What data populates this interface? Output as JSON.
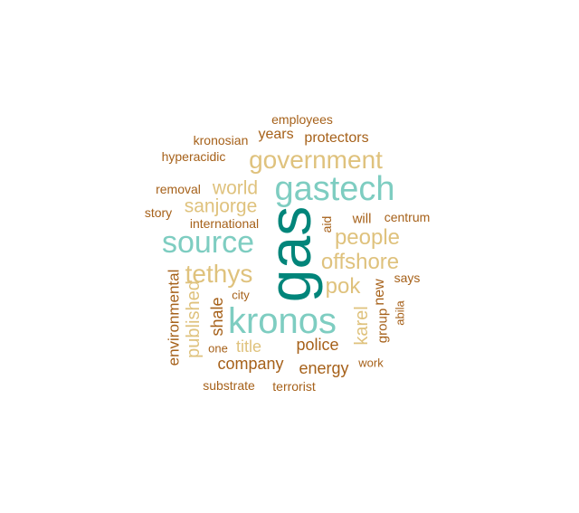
{
  "palette": {
    "dark_teal": "#01857a",
    "light_teal": "#7ecdc1",
    "light_tan": "#dfc27d",
    "brown": "#a6611a"
  },
  "words": [
    {
      "text": "gas",
      "color": "dark_teal",
      "vertical": true
    },
    {
      "text": "kronos",
      "color": "light_teal",
      "vertical": false
    },
    {
      "text": "gastech",
      "color": "light_teal",
      "vertical": false
    },
    {
      "text": "source",
      "color": "light_teal",
      "vertical": false
    },
    {
      "text": "government",
      "color": "light_tan",
      "vertical": false
    },
    {
      "text": "tethys",
      "color": "light_tan",
      "vertical": false
    },
    {
      "text": "people",
      "color": "light_tan",
      "vertical": false
    },
    {
      "text": "offshore",
      "color": "light_tan",
      "vertical": false
    },
    {
      "text": "pok",
      "color": "light_tan",
      "vertical": false
    },
    {
      "text": "world",
      "color": "light_tan",
      "vertical": false
    },
    {
      "text": "sanjorge",
      "color": "light_tan",
      "vertical": false
    },
    {
      "text": "published",
      "color": "light_tan",
      "vertical": true
    },
    {
      "text": "karel",
      "color": "light_tan",
      "vertical": true
    },
    {
      "text": "title",
      "color": "light_tan",
      "vertical": false
    },
    {
      "text": "shale",
      "color": "brown",
      "vertical": true
    },
    {
      "text": "environmental",
      "color": "brown",
      "vertical": true
    },
    {
      "text": "police",
      "color": "brown",
      "vertical": false
    },
    {
      "text": "company",
      "color": "brown",
      "vertical": false
    },
    {
      "text": "energy",
      "color": "brown",
      "vertical": false
    },
    {
      "text": "new",
      "color": "brown",
      "vertical": true
    },
    {
      "text": "group",
      "color": "brown",
      "vertical": true
    },
    {
      "text": "years",
      "color": "brown",
      "vertical": false
    },
    {
      "text": "protectors",
      "color": "brown",
      "vertical": false
    },
    {
      "text": "will",
      "color": "brown",
      "vertical": false
    },
    {
      "text": "aid",
      "color": "brown",
      "vertical": true
    },
    {
      "text": "employees",
      "color": "brown",
      "vertical": false
    },
    {
      "text": "kronosian",
      "color": "brown",
      "vertical": false
    },
    {
      "text": "hyperacidic",
      "color": "brown",
      "vertical": false
    },
    {
      "text": "removal",
      "color": "brown",
      "vertical": false
    },
    {
      "text": "story",
      "color": "brown",
      "vertical": false
    },
    {
      "text": "international",
      "color": "brown",
      "vertical": false
    },
    {
      "text": "centrum",
      "color": "brown",
      "vertical": false
    },
    {
      "text": "says",
      "color": "brown",
      "vertical": false
    },
    {
      "text": "abila",
      "color": "brown",
      "vertical": true
    },
    {
      "text": "city",
      "color": "brown",
      "vertical": false
    },
    {
      "text": "one",
      "color": "brown",
      "vertical": false
    },
    {
      "text": "work",
      "color": "brown",
      "vertical": false
    },
    {
      "text": "substrate",
      "color": "brown",
      "vertical": false
    },
    {
      "text": "terrorist",
      "color": "brown",
      "vertical": false
    }
  ]
}
